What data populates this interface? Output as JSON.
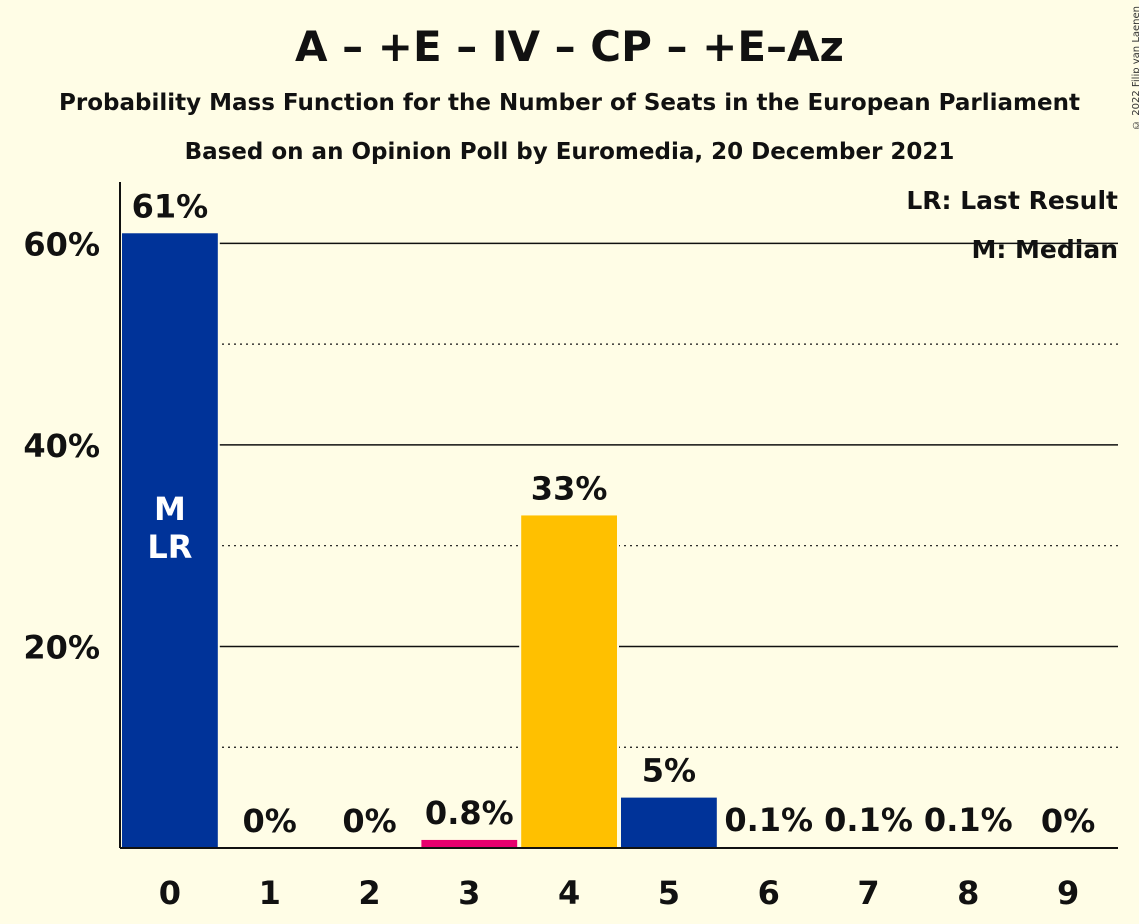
{
  "title": "A – +E – IV – CP – +E–Az",
  "subtitle": "Probability Mass Function for the Number of Seats in the European Parliament",
  "subtitle2": "Based on an Opinion Poll by Euromedia, 20 December 2021",
  "copyright": "© 2022 Filip van Laenen",
  "legend": {
    "last_result": "LR: Last Result",
    "median": "M: Median"
  },
  "chart_data": {
    "type": "bar",
    "categories": [
      "0",
      "1",
      "2",
      "3",
      "4",
      "5",
      "6",
      "7",
      "8",
      "9"
    ],
    "values": [
      61,
      0,
      0,
      0.8,
      33,
      5,
      0.1,
      0.1,
      0.1,
      0
    ],
    "value_labels": [
      "61%",
      "0%",
      "0%",
      "0.8%",
      "33%",
      "5%",
      "0.1%",
      "0.1%",
      "0.1%",
      "0%"
    ],
    "colors": [
      "#003399",
      "#003399",
      "#003399",
      "#E6006E",
      "#FFC000",
      "#003399",
      "#003399",
      "#003399",
      "#003399",
      "#003399"
    ],
    "ylim": [
      0,
      66
    ],
    "yticks": [
      20,
      40,
      60
    ],
    "ytick_labels": [
      "20%",
      "40%",
      "60%"
    ],
    "minor_gridlines": [
      10,
      30,
      50
    ],
    "median_index": 0,
    "last_result_index": 0,
    "median_marker": "M",
    "last_result_marker": "LR",
    "legend_position": "top-right"
  }
}
